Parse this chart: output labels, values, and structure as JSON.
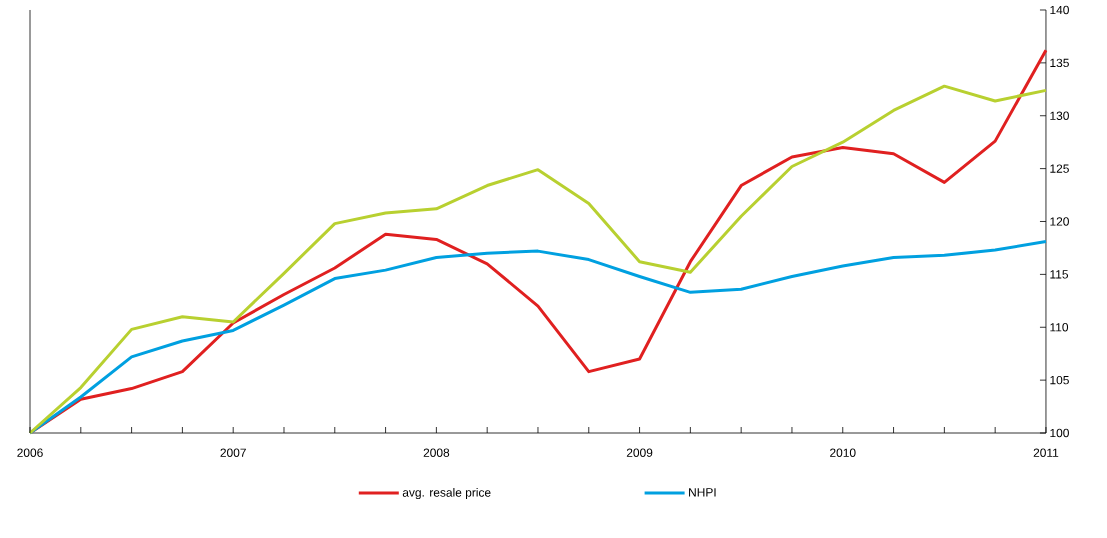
{
  "chart_data": {
    "type": "line",
    "x": [
      2006,
      2006.25,
      2006.5,
      2006.75,
      2007,
      2007.25,
      2007.5,
      2007.75,
      2008,
      2008.25,
      2008.5,
      2008.75,
      2009,
      2009.25,
      2009.5,
      2009.75,
      2010,
      2010.25,
      2010.5,
      2010.75,
      2011
    ],
    "series": [
      {
        "name": "avg. resale price",
        "color": "#e02020",
        "values": [
          100,
          103.2,
          104.2,
          105.8,
          110.4,
          113.1,
          115.6,
          118.8,
          118.3,
          116.0,
          112.0,
          105.8,
          107.0,
          116.2,
          123.4,
          126.1,
          127.0,
          126.4,
          123.7,
          127.6,
          136.2
        ]
      },
      {
        "name": "NHPI",
        "color": "#00a0e0",
        "values": [
          100,
          103.4,
          107.2,
          108.7,
          109.7,
          112.1,
          114.6,
          115.4,
          116.6,
          117.0,
          117.2,
          116.4,
          114.8,
          113.3,
          113.6,
          114.8,
          115.8,
          116.6,
          116.8,
          117.3,
          118.1
        ]
      },
      {
        "color": "#b8d030",
        "values": [
          100,
          104.3,
          109.8,
          111.0,
          110.5,
          115.1,
          119.8,
          120.8,
          121.2,
          123.4,
          124.9,
          121.7,
          116.2,
          115.2,
          120.5,
          125.2,
          127.5,
          130.5,
          132.8,
          131.4,
          132.4
        ]
      }
    ],
    "xlim": [
      2006,
      2011
    ],
    "xticks": [
      2006,
      {
        "value": 2006.25,
        "label": null
      },
      {
        "value": 2006.5,
        "label": null
      },
      {
        "value": 2006.75,
        "label": null
      },
      2007,
      {
        "value": 2007.25,
        "label": null
      },
      {
        "value": 2007.5,
        "label": null
      },
      {
        "value": 2007.75,
        "label": null
      },
      2008,
      {
        "value": 2008.25,
        "label": null
      },
      {
        "value": 2008.5,
        "label": null
      },
      {
        "value": 2008.75,
        "label": null
      },
      2009,
      {
        "value": 2009.25,
        "label": null
      },
      {
        "value": 2009.5,
        "label": null
      },
      {
        "value": 2009.75,
        "label": null
      },
      2010,
      {
        "value": 2010.25,
        "label": null
      },
      {
        "value": 2010.5,
        "label": null
      },
      {
        "value": 2010.75,
        "label": null
      },
      2011
    ],
    "ylim": [
      100,
      140
    ],
    "yticks": [
      100,
      105,
      110,
      115,
      120,
      125,
      130,
      135,
      140
    ],
    "grid": false,
    "legend": "bottom",
    "marker": "none",
    "line_style": "solid"
  }
}
